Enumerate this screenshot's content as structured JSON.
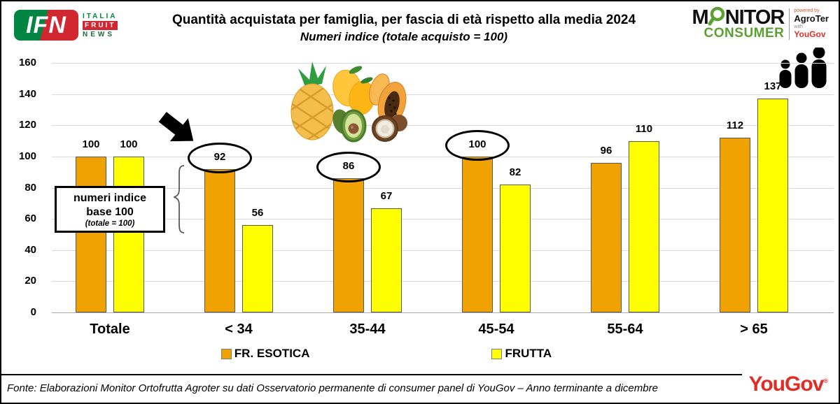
{
  "header": {
    "ifn_logo": {
      "badge": "IFN",
      "line1": "ITALIA",
      "line2": "FRUIT",
      "line3": "NEWS"
    },
    "monitor_logo": {
      "word1_start": "M",
      "word1_rest": "NITOR",
      "word2": "CONSUMER",
      "powered_by": "powered by",
      "agroter": "AgroTer",
      "with": "with",
      "yougov": "YouGov",
      "green": "#5BA032"
    }
  },
  "chart_data": {
    "type": "bar",
    "title": "Quantità acquistata per famiglia, per fascia di età rispetto alla media 2024",
    "subtitle": "Numeri indice (totale acquisto = 100)",
    "categories": [
      "Totale",
      "< 34",
      "35-44",
      "45-54",
      "55-64",
      "> 65"
    ],
    "series": [
      {
        "name": "FR. ESOTICA",
        "color": "#F0A202",
        "border_color": "#595959",
        "values": [
          100,
          92,
          86,
          100,
          96,
          112
        ]
      },
      {
        "name": "FRUTTA",
        "color": "#FFFF00",
        "border_color": "#595959",
        "values": [
          100,
          56,
          67,
          82,
          110,
          137
        ]
      }
    ],
    "ylim": [
      0,
      160
    ],
    "yticks": [
      0,
      20,
      40,
      60,
      80,
      100,
      120,
      140,
      160
    ],
    "grid": true,
    "legend_position": "bottom",
    "circled_value_labels": [
      {
        "series": 0,
        "category": "< 34",
        "value": 92
      },
      {
        "series": 0,
        "category": "35-44",
        "value": 86
      },
      {
        "series": 0,
        "category": "45-54",
        "value": 100
      }
    ]
  },
  "annotation_box": {
    "line1": "numeri indice",
    "line2": "base 100",
    "line3": "(totale = 100)"
  },
  "footer": {
    "source": "Fonte: Elaborazioni Monitor Ortofrutta Agroter su dati Osservatorio permanente di consumer panel di YouGov – Anno terminante a dicembre",
    "yougov": "YouGov"
  }
}
